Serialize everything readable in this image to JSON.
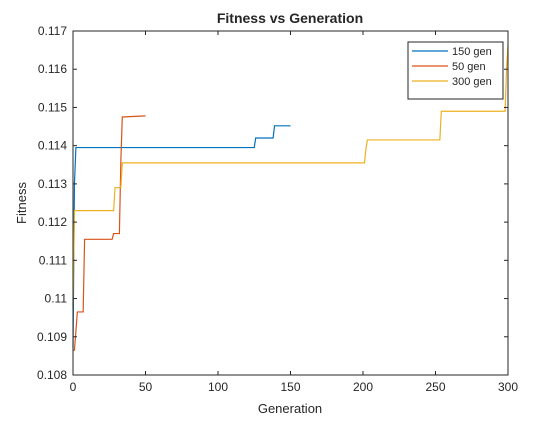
{
  "chart_data": {
    "type": "line",
    "title": "Fitness vs Generation",
    "xlabel": "Generation",
    "ylabel": "Fitness",
    "xlim": [
      0,
      300
    ],
    "ylim": [
      0.108,
      0.117
    ],
    "xticks": [
      "0",
      "50",
      "100",
      "150",
      "200",
      "250",
      "300"
    ],
    "yticks": [
      "0.108",
      "0.109",
      "0.11",
      "0.111",
      "0.112",
      "0.113",
      "0.114",
      "0.115",
      "0.116",
      "0.117"
    ],
    "grid": false,
    "legend_position": "top-right",
    "series": [
      {
        "name": "150 gen",
        "color": "#0072BD",
        "points": [
          [
            0,
            0.1087
          ],
          [
            1,
            0.113
          ],
          [
            2,
            0.11395
          ],
          [
            125,
            0.11395
          ],
          [
            126,
            0.1142
          ],
          [
            138,
            0.1142
          ],
          [
            139,
            0.11452
          ],
          [
            150,
            0.11452
          ]
        ]
      },
      {
        "name": "50 gen",
        "color": "#D95319",
        "points": [
          [
            0,
            0.10865
          ],
          [
            1,
            0.10865
          ],
          [
            3,
            0.10965
          ],
          [
            7,
            0.10965
          ],
          [
            8,
            0.11155
          ],
          [
            27,
            0.11155
          ],
          [
            28,
            0.1117
          ],
          [
            32,
            0.1117
          ],
          [
            33,
            0.1136
          ],
          [
            34,
            0.11475
          ],
          [
            50,
            0.11478
          ]
        ]
      },
      {
        "name": "300 gen",
        "color": "#EDB120",
        "points": [
          [
            0,
            0.1098
          ],
          [
            1,
            0.1123
          ],
          [
            28,
            0.1123
          ],
          [
            29,
            0.1129
          ],
          [
            33,
            0.1129
          ],
          [
            34,
            0.11355
          ],
          [
            201,
            0.11355
          ],
          [
            202,
            0.1139
          ],
          [
            203,
            0.11415
          ],
          [
            253,
            0.11415
          ],
          [
            254,
            0.1149
          ],
          [
            298,
            0.1149
          ],
          [
            299,
            0.116
          ],
          [
            300,
            0.11665
          ]
        ]
      }
    ]
  }
}
